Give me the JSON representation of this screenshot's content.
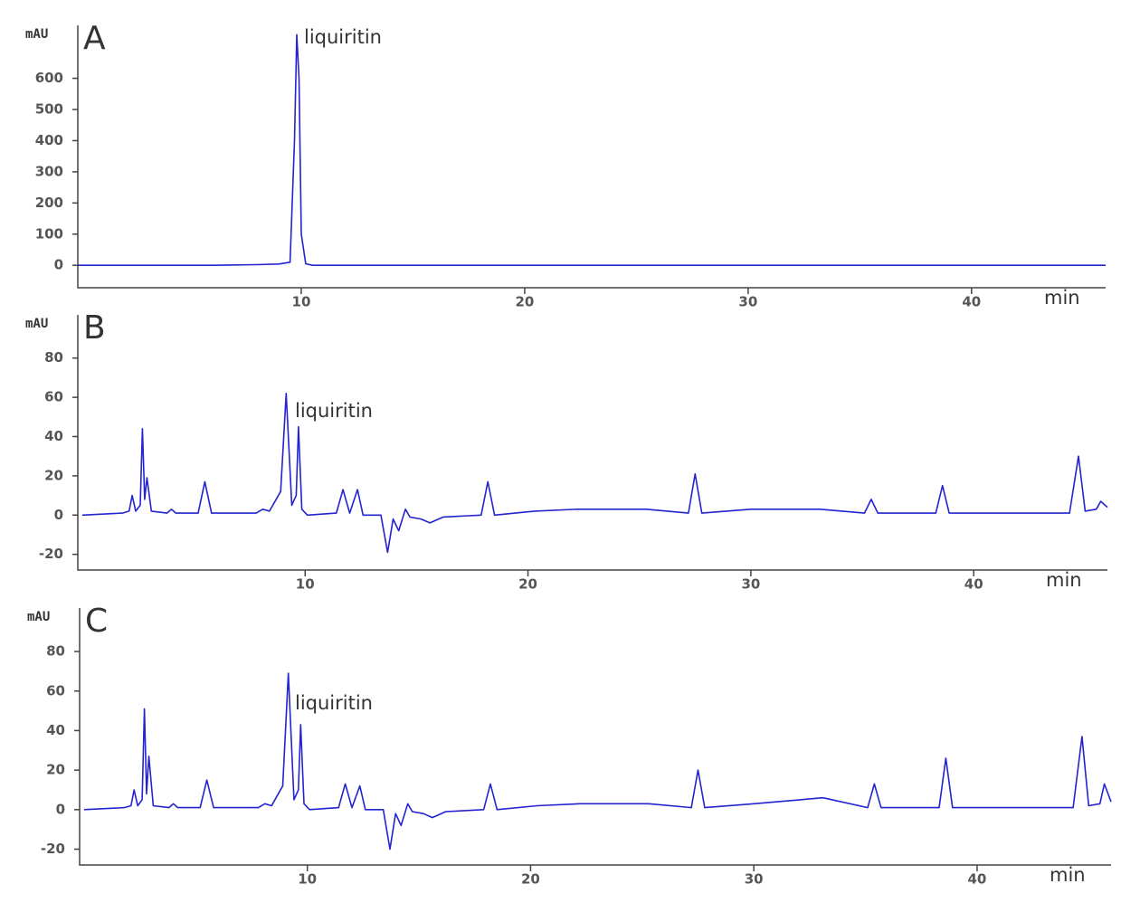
{
  "chart_data": [
    {
      "type": "line",
      "panel_label": "A",
      "y_label": "mAU",
      "x_label": "min",
      "annotation": "liquiritin",
      "x": [
        0,
        2,
        4,
        6,
        8,
        9,
        9.5,
        9.7,
        9.8,
        9.9,
        10.0,
        10.2,
        10.5,
        12,
        20,
        26,
        30,
        40,
        46
      ],
      "series": [
        {
          "color": "#2323d2",
          "values": [
            0,
            0,
            0,
            0,
            2,
            4,
            10,
            400,
            740,
            600,
            100,
            5,
            0,
            0,
            0,
            0,
            0,
            0,
            0
          ]
        }
      ],
      "xlim": [
        0,
        46
      ],
      "xticks": [
        10,
        20,
        30,
        40
      ],
      "ylim": [
        -72,
        770
      ],
      "yticks": [
        0,
        100,
        200,
        300,
        400,
        500,
        600
      ],
      "grid": false
    },
    {
      "type": "line",
      "panel_label": "B",
      "y_label": "mAU",
      "x_label": "min",
      "annotation": "liquiritin",
      "x": [
        0,
        1.8,
        2.1,
        2.24,
        2.4,
        2.6,
        2.7,
        2.8,
        2.9,
        3.1,
        3.8,
        4.0,
        4.2,
        5.2,
        5.5,
        5.8,
        7.8,
        8.1,
        8.4,
        8.6,
        8.9,
        9.15,
        9.4,
        9.6,
        9.7,
        9.85,
        10.1,
        11.4,
        11.7,
        12.0,
        12.35,
        12.6,
        13.4,
        13.7,
        13.95,
        14.2,
        14.5,
        14.7,
        15.2,
        15.6,
        16.2,
        17.9,
        18.2,
        18.5,
        20.3,
        22.2,
        25.3,
        27.2,
        27.5,
        27.8,
        30.0,
        33.1,
        35.1,
        35.4,
        35.7,
        38.3,
        38.6,
        38.9,
        44.3,
        44.7,
        45.0,
        45.5,
        45.7,
        46
      ],
      "series": [
        {
          "color": "#2323d2",
          "values": [
            0,
            1,
            2,
            10,
            2,
            5,
            44,
            8,
            19,
            2,
            1,
            3,
            1,
            1,
            17,
            1,
            1,
            3,
            2,
            6,
            12,
            62,
            5,
            10,
            45,
            3,
            0,
            1,
            13,
            1,
            13,
            0,
            0,
            -19,
            -2,
            -8,
            3,
            -1,
            -2,
            -4,
            -1,
            0,
            17,
            0,
            2,
            3,
            3,
            1,
            21,
            1,
            3,
            3,
            1,
            8,
            1,
            1,
            15,
            1,
            1,
            30,
            2,
            3,
            7,
            4
          ]
        }
      ],
      "xlim": [
        -0.2,
        46
      ],
      "xticks": [
        10,
        20,
        30,
        40
      ],
      "ylim": [
        -28,
        102
      ],
      "yticks": [
        -20,
        0,
        20,
        40,
        60,
        80
      ],
      "grid": false
    },
    {
      "type": "line",
      "panel_label": "C",
      "y_label": "mAU",
      "x_label": "min",
      "annotation": "liquiritin",
      "x": [
        0,
        1.8,
        2.1,
        2.24,
        2.4,
        2.6,
        2.7,
        2.8,
        2.9,
        3.1,
        3.8,
        4.0,
        4.2,
        5.2,
        5.5,
        5.8,
        7.8,
        8.1,
        8.4,
        8.6,
        8.9,
        9.15,
        9.4,
        9.6,
        9.7,
        9.85,
        10.1,
        11.4,
        11.7,
        12.0,
        12.35,
        12.6,
        13.4,
        13.7,
        13.95,
        14.2,
        14.5,
        14.7,
        15.2,
        15.6,
        16.2,
        17.9,
        18.2,
        18.5,
        20.3,
        22.2,
        25.3,
        27.2,
        27.5,
        27.8,
        30.0,
        33.1,
        35.1,
        35.4,
        35.7,
        38.3,
        38.6,
        38.9,
        44.3,
        44.7,
        45.0,
        45.5,
        45.7,
        46
      ],
      "series": [
        {
          "color": "#2323d2",
          "values": [
            0,
            1,
            2,
            10,
            2,
            5,
            51,
            8,
            27,
            2,
            1,
            3,
            1,
            1,
            15,
            1,
            1,
            3,
            2,
            6,
            12,
            69,
            5,
            10,
            43,
            3,
            0,
            1,
            13,
            1,
            12,
            0,
            0,
            -20,
            -2,
            -8,
            3,
            -1,
            -2,
            -4,
            -1,
            0,
            13,
            0,
            2,
            3,
            3,
            1,
            20,
            1,
            3,
            6,
            1,
            13,
            1,
            1,
            26,
            1,
            1,
            37,
            2,
            3,
            13,
            4
          ]
        }
      ],
      "xlim": [
        -0.2,
        46
      ],
      "xticks": [
        10,
        20,
        30,
        40
      ],
      "ylim": [
        -28,
        102
      ],
      "yticks": [
        -20,
        0,
        20,
        40,
        60,
        80
      ],
      "grid": false
    }
  ]
}
